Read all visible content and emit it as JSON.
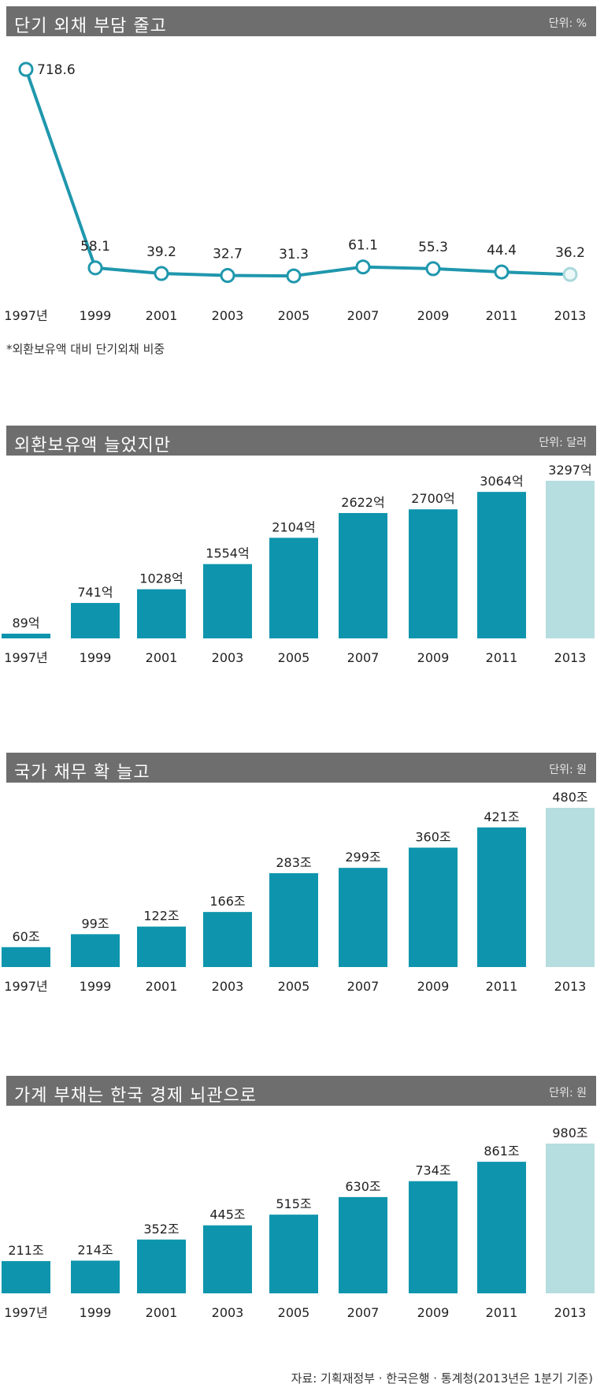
{
  "chart_data": [
    {
      "type": "line",
      "title": "단기 외채 부담 줄고",
      "unit": "단위: %",
      "categories": [
        "1997년",
        "1999",
        "2001",
        "2003",
        "2005",
        "2007",
        "2009",
        "2011",
        "2013"
      ],
      "values": [
        718.6,
        58.1,
        39.2,
        32.7,
        31.3,
        61.1,
        55.3,
        44.4,
        36.2
      ],
      "labels": [
        "718.6",
        "58.1",
        "39.2",
        "32.7",
        "31.3",
        "61.1",
        "55.3",
        "44.4",
        "36.2"
      ],
      "ylim": [
        0,
        750
      ],
      "footnote": "*외환보유액 대비 단기외채 비중",
      "colors": {
        "line": "#1f97ad",
        "marker_fill": "#ffffff",
        "last_marker": "#a8d8dc"
      }
    },
    {
      "type": "bar",
      "title": "외환보유액 늘었지만",
      "unit": "단위: 달러",
      "categories": [
        "1997년",
        "1999",
        "2001",
        "2003",
        "2005",
        "2007",
        "2009",
        "2011",
        "2013"
      ],
      "values": [
        89,
        741,
        1028,
        1554,
        2104,
        2622,
        2700,
        3064,
        3297
      ],
      "labels": [
        "89억",
        "741억",
        "1028억",
        "1554억",
        "2104억",
        "2622억",
        "2700억",
        "3064억",
        "3297억"
      ],
      "ylim": [
        0,
        3297
      ],
      "colors": {
        "bar": "#0e95ad",
        "last_bar": "#b6dddf"
      }
    },
    {
      "type": "bar",
      "title": "국가 채무 확 늘고",
      "unit": "단위: 원",
      "categories": [
        "1997년",
        "1999",
        "2001",
        "2003",
        "2005",
        "2007",
        "2009",
        "2011",
        "2013"
      ],
      "values": [
        60,
        99,
        122,
        166,
        283,
        299,
        360,
        421,
        480
      ],
      "labels": [
        "60조",
        "99조",
        "122조",
        "166조",
        "283조",
        "299조",
        "360조",
        "421조",
        "480조"
      ],
      "ylim": [
        0,
        480
      ],
      "colors": {
        "bar": "#0e95ad",
        "last_bar": "#b6dddf"
      }
    },
    {
      "type": "bar",
      "title": "가계 부채는 한국 경제 뇌관으로",
      "unit": "단위: 원",
      "categories": [
        "1997년",
        "1999",
        "2001",
        "2003",
        "2005",
        "2007",
        "2009",
        "2011",
        "2013"
      ],
      "values": [
        211,
        214,
        352,
        445,
        515,
        630,
        734,
        861,
        980
      ],
      "labels": [
        "211조",
        "214조",
        "352조",
        "445조",
        "515조",
        "630조",
        "734조",
        "861조",
        "980조"
      ],
      "ylim": [
        0,
        980
      ],
      "colors": {
        "bar": "#0e95ad",
        "last_bar": "#b6dddf"
      }
    }
  ],
  "source": "자료: 기획재정부 · 한국은행 · 통계청(2013년은 1분기 기준)"
}
